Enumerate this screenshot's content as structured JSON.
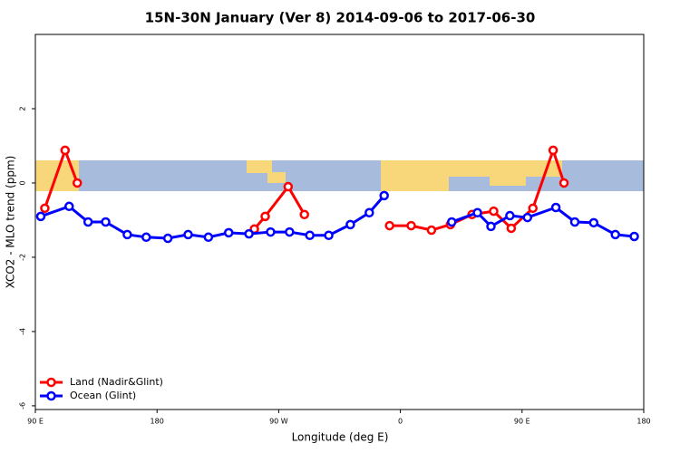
{
  "chart_data": {
    "type": "line",
    "title": "15N-30N January (Ver 8)   2014-09-06 to 2017-06-30",
    "xlabel": "Longitude (deg E)",
    "ylabel": "XCO2 - MLO trend (ppm)",
    "xlim": [
      90,
      540
    ],
    "xticks": [
      {
        "value": 90,
        "label": "90 E"
      },
      180,
      {
        "value": 270,
        "label": "90 W"
      },
      {
        "value": 360,
        "label": "0"
      },
      {
        "value": 450,
        "label": "90 E"
      },
      {
        "value": 540,
        "label": "180"
      }
    ],
    "ylim": [
      -6.1,
      4.0
    ],
    "yticks": [
      -6,
      -4,
      -2,
      0,
      2
    ],
    "legend": "bottom-left",
    "series": [
      {
        "name": "Land (Nadir&Glint)",
        "color": "#ff0000",
        "x": [
          97,
          112,
          121,
          null,
          252,
          260,
          277,
          289,
          null,
          352,
          368,
          383,
          397,
          413,
          429,
          442,
          458,
          473,
          481
        ],
        "values": [
          -0.68,
          0.88,
          0.0,
          null,
          -1.24,
          -0.9,
          -0.1,
          -0.85,
          null,
          -1.15,
          -1.15,
          -1.27,
          -1.12,
          -0.85,
          -0.76,
          -1.22,
          -0.68,
          0.88,
          0.0
        ]
      },
      {
        "name": "Ocean (Glint)",
        "color": "#0000ff",
        "x": [
          94,
          115,
          129,
          142,
          158,
          172,
          188,
          203,
          218,
          233,
          248,
          264,
          278,
          293,
          307,
          323,
          337,
          348,
          null,
          398,
          417,
          427,
          441,
          454,
          475,
          489,
          503,
          519,
          533
        ],
        "values": [
          -0.9,
          -0.63,
          -1.05,
          -1.05,
          -1.39,
          -1.46,
          -1.49,
          -1.39,
          -1.46,
          -1.34,
          -1.37,
          -1.32,
          -1.32,
          -1.41,
          -1.41,
          -1.12,
          -0.8,
          -0.34,
          null,
          -1.05,
          -0.8,
          -1.17,
          -0.88,
          -0.93,
          -0.66,
          -1.05,
          -1.07,
          -1.39,
          -1.44
        ]
      }
    ]
  }
}
